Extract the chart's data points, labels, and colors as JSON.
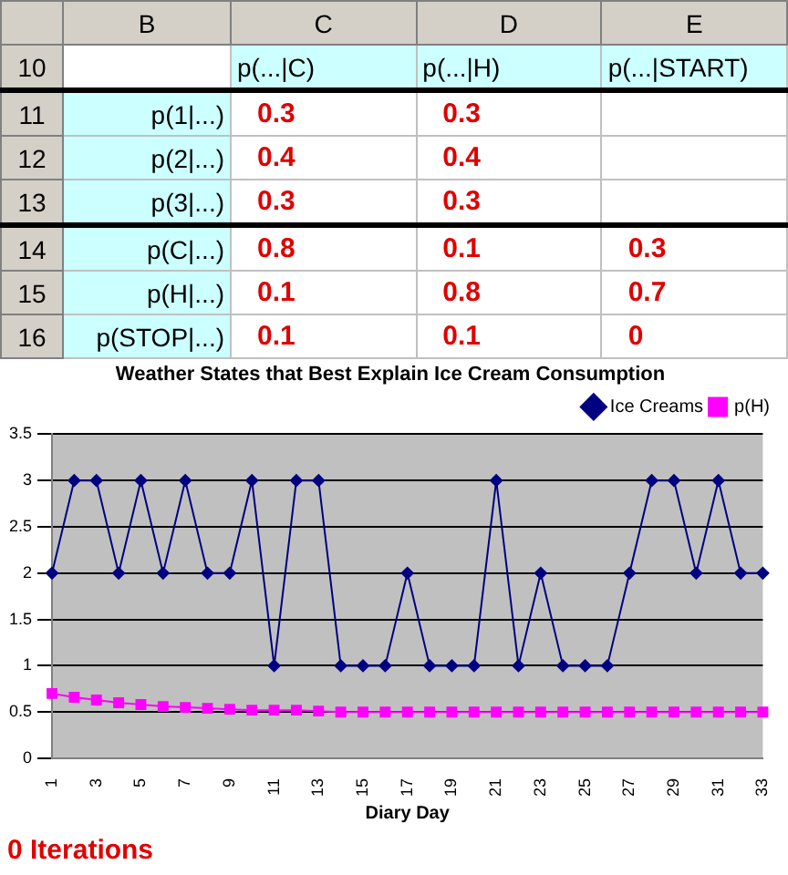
{
  "chart_data": [
    {
      "type": "heatmap",
      "categories": [
        "p(...|C)",
        "p(...|H)",
        "p(...|START)"
      ],
      "y_categories": [
        "p(1|...)",
        "p(2|...)",
        "p(3|...)",
        "p(C|...)",
        "p(H|...)",
        "p(STOP|...)"
      ],
      "cells": [
        [
          0.3,
          0.3,
          null
        ],
        [
          0.4,
          0.4,
          null
        ],
        [
          0.3,
          0.3,
          null
        ],
        [
          0.8,
          0.1,
          0.3
        ],
        [
          0.1,
          0.8,
          0.7
        ],
        [
          0.1,
          0.1,
          0
        ]
      ],
      "annotations": [
        "B",
        "C",
        "D",
        "E",
        "10",
        "11",
        "12",
        "13",
        "14",
        "15",
        "16"
      ],
      "data_labels": true
    },
    {
      "type": "line",
      "title": "Weather States that Best Explain Ice Cream Consumption",
      "xlabel": "Diary Day",
      "categories": [
        "1",
        null,
        "3",
        null,
        "5",
        null,
        "7",
        null,
        "9",
        null,
        "11",
        null,
        "13",
        null,
        "15",
        null,
        "17",
        null,
        "19",
        null,
        "21",
        null,
        "23",
        null,
        "25",
        null,
        "27",
        null,
        "29",
        null,
        "31",
        null,
        "33"
      ],
      "series": [
        {
          "name": "Ice Creams",
          "color": "#000080",
          "marker": "diamond",
          "values": [
            2,
            3,
            3,
            2,
            3,
            2,
            3,
            2,
            2,
            3,
            1,
            3,
            3,
            1,
            1,
            1,
            2,
            1,
            1,
            1,
            3,
            1,
            2,
            1,
            1,
            1,
            2,
            3,
            3,
            2,
            3,
            2,
            2
          ]
        },
        {
          "name": "p(H)",
          "color": "#ff00ff",
          "marker": "square",
          "values": [
            0.7,
            0.66,
            0.63,
            0.6,
            0.58,
            0.56,
            0.55,
            0.54,
            0.53,
            0.52,
            0.52,
            0.52,
            0.51,
            0.5,
            0.5,
            0.5,
            0.5,
            0.5,
            0.5,
            0.5,
            0.5,
            0.5,
            0.5,
            0.5,
            0.5,
            0.5,
            0.5,
            0.5,
            0.5,
            0.5,
            0.5,
            0.5,
            0.5
          ]
        }
      ],
      "ylim": [
        0,
        3.5
      ],
      "yticks": [
        0,
        0.5,
        1,
        1.5,
        2,
        2.5,
        3,
        3.5
      ],
      "grid": "y",
      "legend": "top right",
      "annotations": [
        "0 Iterations"
      ]
    }
  ]
}
